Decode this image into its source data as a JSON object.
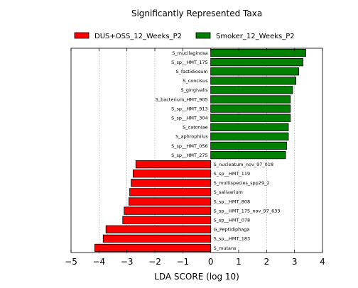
{
  "chart_data": {
    "type": "bar",
    "orientation": "horizontal",
    "title": "Significantly Represented Taxa",
    "xlabel": "LDA SCORE (log 10)",
    "ylabel": "",
    "xlim": [
      -5,
      4
    ],
    "xticks": [
      -5,
      -4,
      -3,
      -2,
      -1,
      0,
      1,
      2,
      3,
      4
    ],
    "xtick_labels": [
      "−5",
      "−4",
      "−3",
      "−2",
      "−1",
      "0",
      "1",
      "2",
      "3",
      "4"
    ],
    "grid": "vertical dotted",
    "legend_position": "top",
    "series": [
      {
        "name": "DUS+OSS_12_Weeks_P2",
        "color": "#ff0000"
      },
      {
        "name": "Smoker_12_Weeks_P2",
        "color": "#008000"
      }
    ],
    "bars": [
      {
        "label": "S_mucilaginosa",
        "value": 3.4,
        "group": 1
      },
      {
        "label": "S_sp__HMT_175",
        "value": 3.3,
        "group": 1
      },
      {
        "label": "S_fastidiosum",
        "value": 3.15,
        "group": 1
      },
      {
        "label": "S_concisus",
        "value": 3.05,
        "group": 1
      },
      {
        "label": "S_gingivalis",
        "value": 2.93,
        "group": 1
      },
      {
        "label": "S_bacterium_HMT_905",
        "value": 2.85,
        "group": 1
      },
      {
        "label": "S_sp__HMT_913",
        "value": 2.85,
        "group": 1
      },
      {
        "label": "S_sp__HMT_304",
        "value": 2.85,
        "group": 1
      },
      {
        "label": "S_catoniae",
        "value": 2.78,
        "group": 1
      },
      {
        "label": "S_aphrophilus",
        "value": 2.78,
        "group": 1
      },
      {
        "label": "S_sp__HMT_056",
        "value": 2.72,
        "group": 1
      },
      {
        "label": "S_sp__HMT_275",
        "value": 2.68,
        "group": 1
      },
      {
        "label": "S_nucleatum_nov_97_018",
        "value": -2.68,
        "group": 0
      },
      {
        "label": "S_sp__HMT_119",
        "value": -2.78,
        "group": 0
      },
      {
        "label": "S_multispecies_spp29_2",
        "value": -2.85,
        "group": 0
      },
      {
        "label": "S_salivarium",
        "value": -2.9,
        "group": 0
      },
      {
        "label": "S_sp__HMT_808",
        "value": -2.93,
        "group": 0
      },
      {
        "label": "S_sp__HMT_175_nov_97_633",
        "value": -3.1,
        "group": 0
      },
      {
        "label": "S_sp__HMT_078",
        "value": -3.15,
        "group": 0
      },
      {
        "label": "G_Peptidiphaga",
        "value": -3.75,
        "group": 0
      },
      {
        "label": "S_sp__HMT_183",
        "value": -3.85,
        "group": 0
      },
      {
        "label": "S_mutans",
        "value": -4.15,
        "group": 0
      }
    ]
  }
}
